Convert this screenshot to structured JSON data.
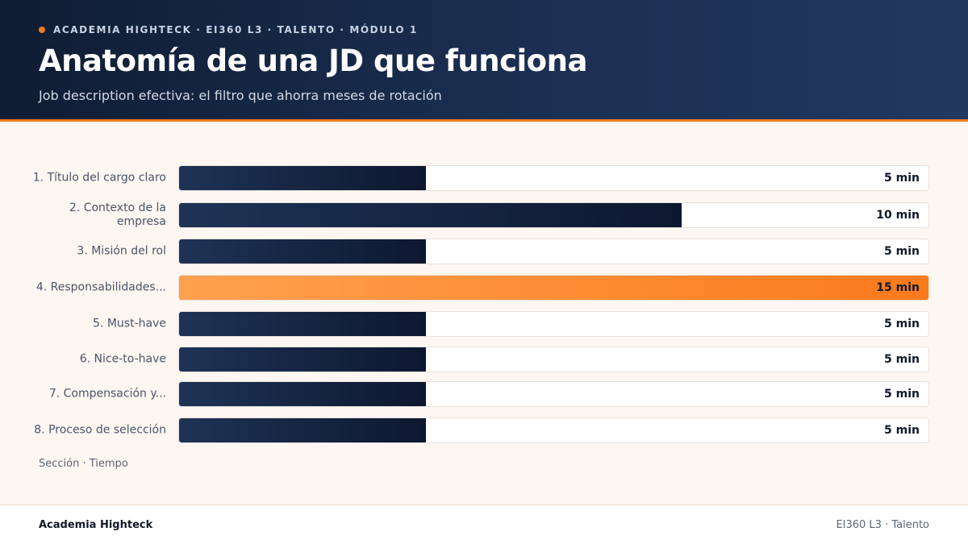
{
  "header": {
    "kicker": "ACADEMIA HIGHTECK · EI360 L3 · TALENTO · MÓDULO 1",
    "title": "Anatomía de una JD que funciona",
    "subtitle": "Job description efectiva: el filtro que ahorra meses de rotación"
  },
  "colors": {
    "header_bg": "#1b2f52",
    "accent": "#f47b20",
    "bar_default": "#14233f",
    "bar_highlight": "#fb8a2e",
    "background": "#fdf6f1"
  },
  "chart_data": {
    "type": "bar",
    "orientation": "horizontal",
    "categories": [
      "1. Título del cargo claro",
      "2. Contexto de la empresa",
      "3. Misión del rol",
      "4. Responsabilidades...",
      "5. Must-have",
      "6. Nice-to-have",
      "7. Compensación y...",
      "8. Proceso de selección"
    ],
    "values": [
      5,
      10,
      5,
      15,
      5,
      5,
      5,
      5
    ],
    "value_labels": [
      "5 min",
      "10 min",
      "5 min",
      "15 min",
      "5 min",
      "5 min",
      "5 min",
      "5 min"
    ],
    "highlight_index": 3,
    "xlim": [
      0,
      15
    ],
    "caption": "Sección · Tiempo",
    "grid": false
  },
  "footer": {
    "left": "Academia Highteck",
    "right": "EI360 L3 · Talento"
  }
}
